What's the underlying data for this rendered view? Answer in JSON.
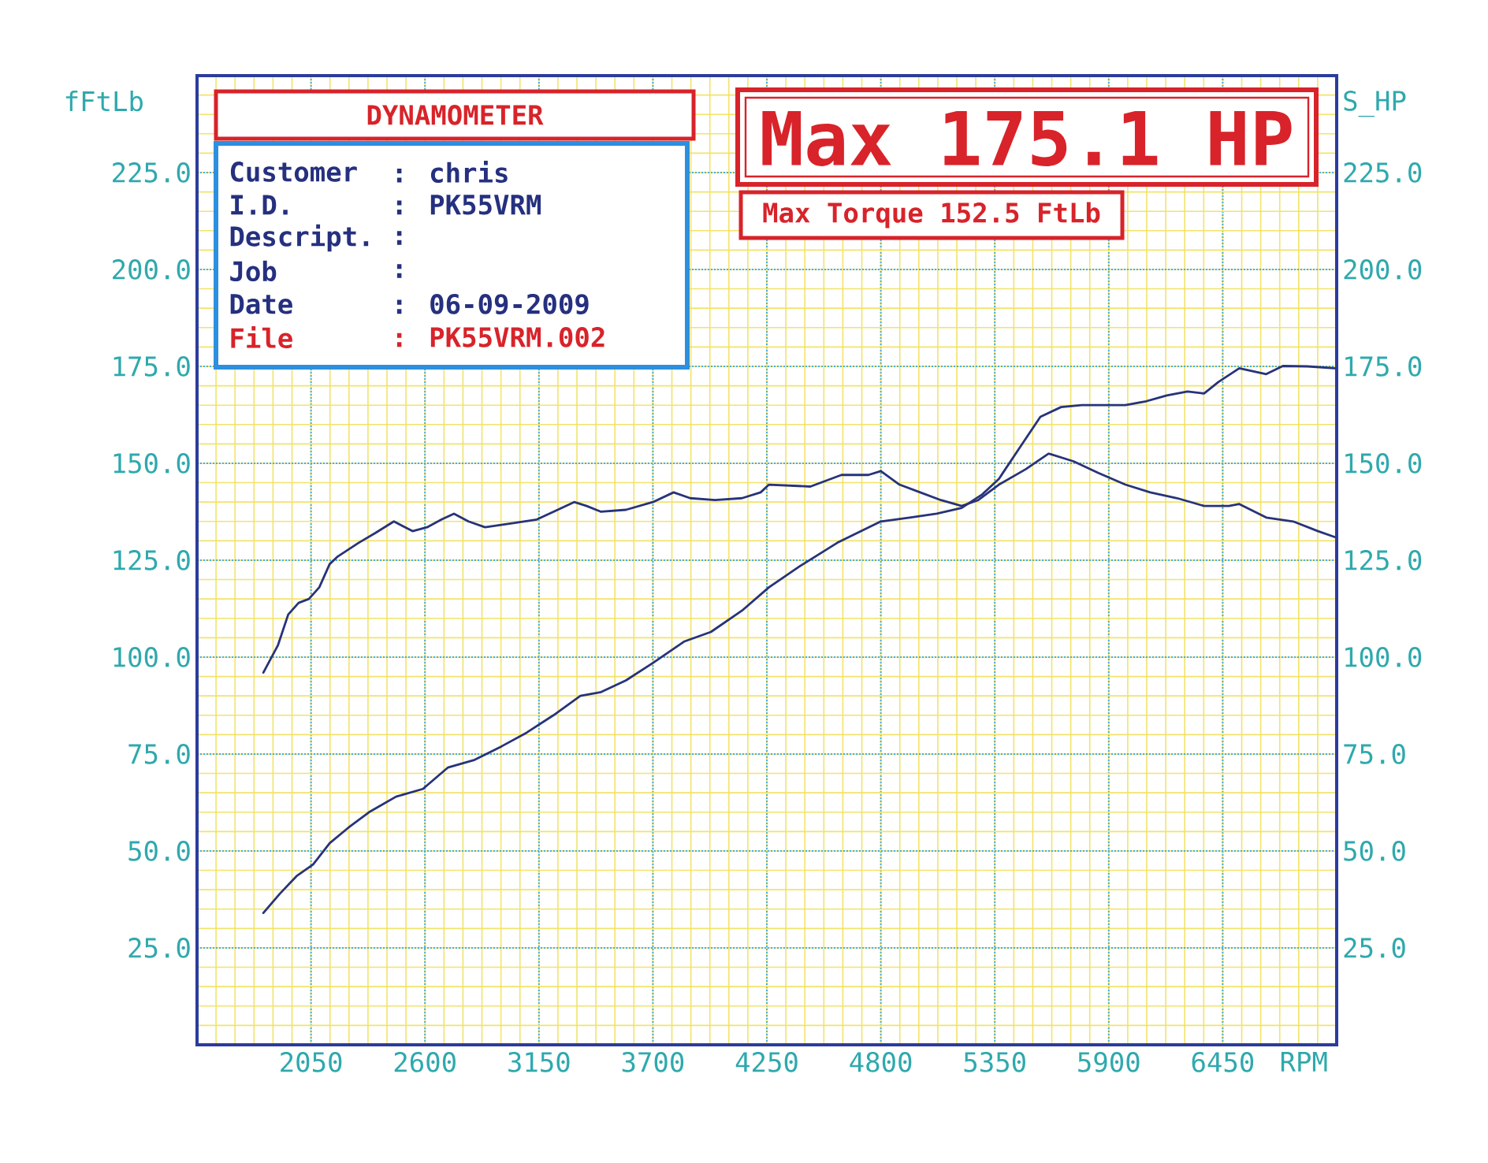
{
  "chart_data": {
    "type": "line",
    "xlabel": "RPM",
    "ylabel": "fFtLb",
    "y2label": "S_HP",
    "xlim": [
      1500,
      7000
    ],
    "xticks": [
      2050,
      2600,
      3150,
      3700,
      4250,
      4800,
      5350,
      5900,
      6450
    ],
    "ylim": [
      0,
      250
    ],
    "yticks": [
      {
        "value": 25,
        "label": "25.0"
      },
      {
        "value": 50,
        "label": "50.0"
      },
      {
        "value": 75,
        "label": "75.0"
      },
      {
        "value": 100,
        "label": "100.0"
      },
      {
        "value": 125,
        "label": "125.0"
      },
      {
        "value": 150,
        "label": "150.0"
      },
      {
        "value": 175,
        "label": "175.0"
      },
      {
        "value": 200,
        "label": "200.0"
      },
      {
        "value": 225,
        "label": "225.0"
      }
    ],
    "y2lim": [
      0,
      250
    ],
    "y2ticks": [
      {
        "value": 25,
        "label": "25.0"
      },
      {
        "value": 50,
        "label": "50.0"
      },
      {
        "value": 75,
        "label": "75.0"
      },
      {
        "value": 100,
        "label": "100.0"
      },
      {
        "value": 125,
        "label": "125.0"
      },
      {
        "value": 150,
        "label": "150.0"
      },
      {
        "value": 175,
        "label": "175.0"
      },
      {
        "value": 200,
        "label": "200.0"
      },
      {
        "value": 225,
        "label": "225.0"
      }
    ],
    "grid": true,
    "series": [
      {
        "color": "#27337a",
        "x": [
          1820,
          1890,
          1940,
          1990,
          2040,
          2090,
          2140,
          2180,
          2280,
          2360,
          2450,
          2540,
          2610,
          2680,
          2740,
          2810,
          2890,
          3020,
          3140,
          3220,
          3320,
          3380,
          3450,
          3570,
          3700,
          3800,
          3880,
          4000,
          4130,
          4220,
          4260,
          4460,
          4610,
          4740,
          4800,
          4890,
          4990,
          5090,
          5190,
          5270,
          5370,
          5500,
          5610,
          5730,
          5850,
          5980,
          6100,
          6230,
          6360,
          6480,
          6530,
          6660,
          6790,
          6910,
          6990
        ],
        "values": [
          96,
          103,
          111,
          114,
          115,
          118,
          124,
          126,
          129.5,
          132,
          135,
          132.5,
          133.5,
          135.5,
          137,
          135,
          133.5,
          134.5,
          135.5,
          137.5,
          140,
          139,
          137.5,
          138,
          140,
          142.5,
          141,
          140.5,
          141,
          142.5,
          144.5,
          144,
          147,
          147,
          148,
          144.5,
          142.5,
          140.5,
          139,
          140.5,
          144.5,
          148.5,
          152.5,
          150.5,
          147.5,
          144.5,
          142.5,
          141,
          139,
          139,
          139.5,
          136,
          135,
          132.5,
          131
        ]
      },
      {
        "color": "#27337a",
        "axis": "y2",
        "x": [
          1820,
          1900,
          1980,
          2060,
          2140,
          2230,
          2330,
          2460,
          2590,
          2710,
          2840,
          2970,
          3090,
          3220,
          3350,
          3450,
          3570,
          3700,
          3850,
          3980,
          4130,
          4260,
          4410,
          4590,
          4800,
          4940,
          5070,
          5190,
          5290,
          5370,
          5470,
          5570,
          5670,
          5770,
          5980,
          6080,
          6180,
          6280,
          6360,
          6430,
          6530,
          6660,
          6740,
          6860,
          6990
        ],
        "values": [
          34,
          39,
          43.5,
          46.5,
          52,
          56,
          60,
          64,
          66,
          71.5,
          73.5,
          77,
          80.5,
          85,
          90,
          91,
          94,
          98.5,
          104,
          106.5,
          112,
          118,
          123.5,
          129.5,
          135,
          136,
          137,
          138.5,
          142,
          146,
          154,
          162,
          164.5,
          165,
          165,
          166,
          167.5,
          168.5,
          168,
          171,
          174.5,
          173,
          175.1,
          175,
          174.5
        ]
      }
    ],
    "annotations": [
      "DYNAMOMETER",
      "Customer",
      ": chris",
      "I.D.",
      ": PK55VRM",
      "Descript.",
      ":",
      "Job",
      ":",
      "Date",
      ": 06-09-2009",
      "File",
      ": PK55VRM.002",
      "Max 175.1 HP",
      "Max Torque 152.5 FtLb"
    ]
  }
}
